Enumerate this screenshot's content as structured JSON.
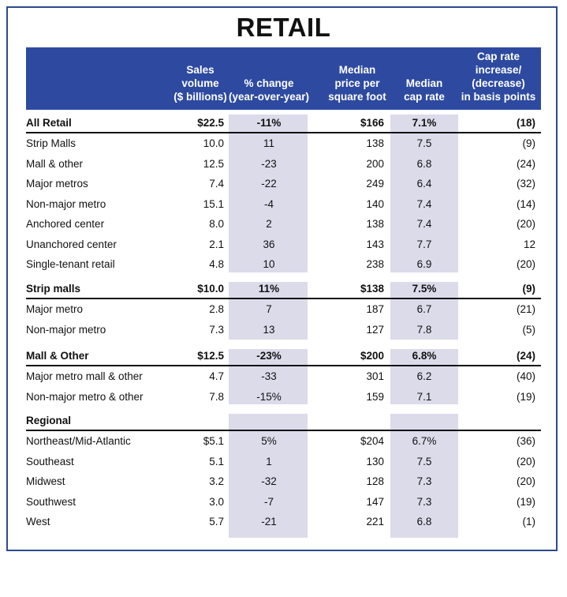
{
  "title": "RETAIL",
  "columns": [
    "Sales volume ($ billions)",
    "% change (year-over-year)",
    "Median price per square foot",
    "Median cap rate",
    "Cap rate increase/ (decrease) in basis points"
  ],
  "column_lines": [
    [
      "Sales",
      "volume",
      "($ billions)"
    ],
    [
      "% change",
      "(year-over-year)"
    ],
    [
      "Median",
      "price per",
      "square foot"
    ],
    [
      "Median",
      "cap rate"
    ],
    [
      "Cap rate",
      "increase/",
      "(decrease)",
      "in basis points"
    ]
  ],
  "sections": [
    {
      "header": {
        "name": "All Retail",
        "values": [
          "$22.5",
          "-11%",
          "$166",
          "7.1%",
          "(18)"
        ]
      },
      "rows": [
        {
          "name": "Strip Malls",
          "values": [
            "10.0",
            "11",
            "138",
            "7.5",
            "(9)"
          ]
        },
        {
          "name": "Mall & other",
          "values": [
            "12.5",
            "-23",
            "200",
            "6.8",
            "(24)"
          ]
        },
        {
          "name": "Major metros",
          "values": [
            "7.4",
            "-22",
            "249",
            "6.4",
            "(32)"
          ]
        },
        {
          "name": "Non-major metro",
          "values": [
            "15.1",
            "-4",
            "140",
            "7.4",
            "(14)"
          ]
        },
        {
          "name": "Anchored center",
          "values": [
            "8.0",
            "2",
            "138",
            "7.4",
            "(20)"
          ]
        },
        {
          "name": "Unanchored center",
          "values": [
            "2.1",
            "36",
            "143",
            "7.7",
            "12"
          ]
        },
        {
          "name": "Single-tenant retail",
          "values": [
            "4.8",
            "10",
            "238",
            "6.9",
            "(20)"
          ]
        }
      ]
    },
    {
      "header": {
        "name": "Strip malls",
        "values": [
          "$10.0",
          "11%",
          "$138",
          "7.5%",
          "(9)"
        ]
      },
      "rows": [
        {
          "name": "Major metro",
          "values": [
            "2.8",
            "7",
            "187",
            "6.7",
            "(21)"
          ]
        },
        {
          "name": "Non-major metro",
          "values": [
            "7.3",
            "13",
            "127",
            "7.8",
            "(5)"
          ]
        }
      ]
    },
    {
      "header": {
        "name": "Mall & Other",
        "values": [
          "$12.5",
          "-23%",
          "$200",
          "6.8%",
          "(24)"
        ]
      },
      "rows": [
        {
          "name": "Major metro mall & other",
          "values": [
            "4.7",
            "-33",
            "301",
            "6.2",
            "(40)"
          ]
        },
        {
          "name": "Non-major metro & other",
          "values": [
            "7.8",
            "-15%",
            "159",
            "7.1",
            "(19)"
          ]
        }
      ]
    },
    {
      "header": {
        "name": "Regional",
        "values": [
          "",
          "",
          "",
          "",
          ""
        ]
      },
      "rows": [
        {
          "name": "Northeast/Mid-Atlantic",
          "values": [
            "$5.1",
            "5%",
            "$204",
            "6.7%",
            "(36)"
          ]
        },
        {
          "name": "Southeast",
          "values": [
            "5.1",
            "1",
            "130",
            "7.5",
            "(20)"
          ]
        },
        {
          "name": "Midwest",
          "values": [
            "3.2",
            "-32",
            "128",
            "7.3",
            "(20)"
          ]
        },
        {
          "name": "Southwest",
          "values": [
            "3.0",
            "-7",
            "147",
            "7.3",
            "(19)"
          ]
        },
        {
          "name": "West",
          "values": [
            "5.7",
            "-21",
            "221",
            "6.8",
            "(1)"
          ]
        }
      ]
    }
  ],
  "colors": {
    "border": "#2c4a8c",
    "header_bg": "#2e4aa0",
    "header_text": "#ffffff",
    "column_shade": "#dcdbea"
  }
}
